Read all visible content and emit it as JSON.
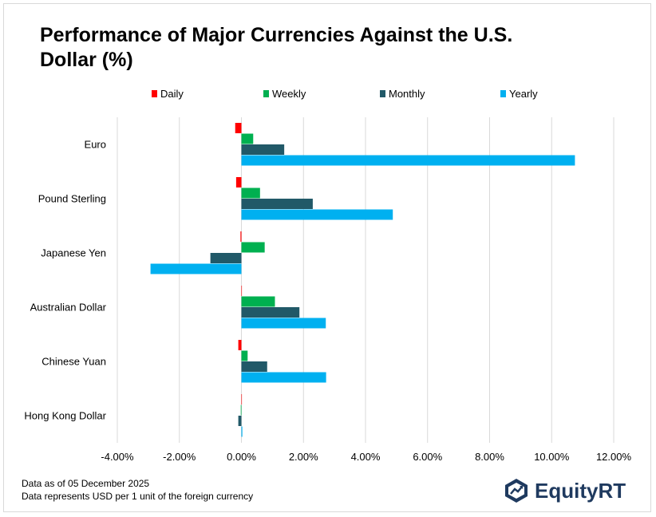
{
  "chart_data": {
    "type": "bar",
    "orientation": "horizontal",
    "title": "Performance of Major Currencies Against the U.S. Dollar (%)",
    "categories": [
      "Euro",
      "Pound Sterling",
      "Japanese Yen",
      "Australian Dollar",
      "Chinese Yuan",
      "Hong Kong Dollar"
    ],
    "series": [
      {
        "name": "Daily",
        "color": "#ff0000",
        "values": [
          -0.2,
          -0.17,
          -0.03,
          0.0,
          -0.1,
          0.0
        ]
      },
      {
        "name": "Weekly",
        "color": "#00b050",
        "values": [
          0.38,
          0.6,
          0.75,
          1.08,
          0.2,
          -0.02
        ]
      },
      {
        "name": "Monthly",
        "color": "#215968",
        "values": [
          1.38,
          2.3,
          -1.0,
          1.87,
          0.83,
          -0.1
        ]
      },
      {
        "name": "Yearly",
        "color": "#00b0f0",
        "values": [
          10.75,
          4.88,
          -2.93,
          2.72,
          2.73,
          0.03
        ]
      }
    ],
    "xlim": [
      -4,
      12
    ],
    "xticks": [
      -4,
      -2,
      0,
      2,
      4,
      6,
      8,
      10,
      12
    ],
    "xtick_labels": [
      "-4.00%",
      "-2.00%",
      "0.00%",
      "2.00%",
      "4.00%",
      "6.00%",
      "8.00%",
      "10.00%",
      "12.00%"
    ],
    "grid": true,
    "legend_position": "top"
  },
  "footnotes": {
    "date": "Data as of 05 December 2025",
    "note": "Data represents USD per 1 unit of the foreign currency"
  },
  "logo": {
    "name": "EquityRT"
  }
}
